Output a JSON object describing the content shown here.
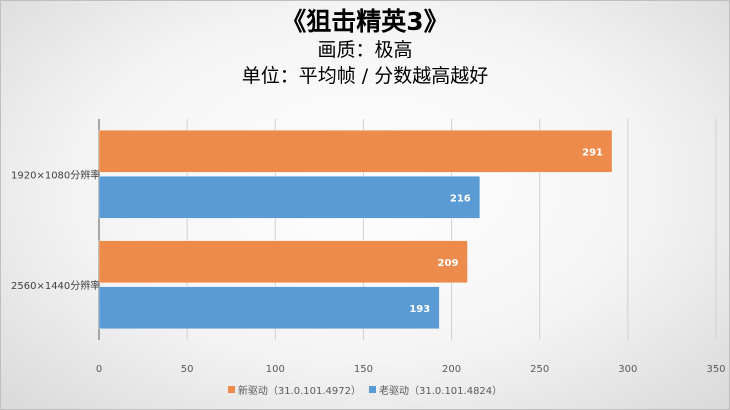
{
  "chart_data": {
    "type": "bar",
    "orientation": "horizontal",
    "title": "《狙击精英3》",
    "subtitle": "画质：极高",
    "subtitle2": "单位：平均帧 / 分数越高越好",
    "categories": [
      "1920×1080分辨率",
      "2560×1440分辨率"
    ],
    "series": [
      {
        "name": "新驱动（31.0.101.4972）",
        "values": [
          291,
          209
        ],
        "color": "#ed8b4c"
      },
      {
        "name": "老驱动（31.0.101.4824）",
        "values": [
          216,
          193
        ],
        "color": "#5b9bd5"
      }
    ],
    "xlim": [
      0,
      350
    ],
    "xticks": [
      0,
      50,
      100,
      150,
      200,
      250,
      300,
      350
    ],
    "grid": true,
    "legend": "bottom"
  }
}
